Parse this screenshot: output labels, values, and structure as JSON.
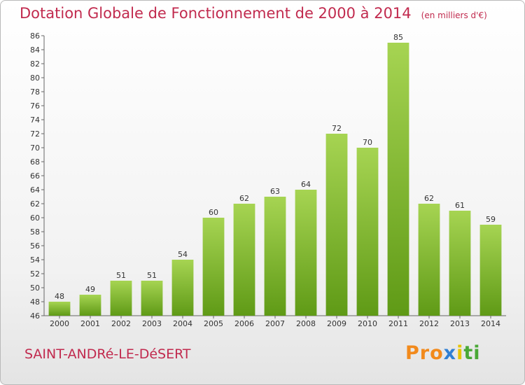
{
  "title": "Dotation Globale de Fonctionnement de 2000 à 2014",
  "unit_note": "(en milliers d'€)",
  "commune": "SAINT-ANDRé-LE-DéSERT",
  "logo_text": "Proxiti",
  "colors": {
    "title": "#c12a4e",
    "bar_top": "#a6d452",
    "bar_bottom": "#5f9a16",
    "axis": "#666666",
    "grid": "#dddddd"
  },
  "chart_data": {
    "type": "bar",
    "title": "Dotation Globale de Fonctionnement de 2000 à 2014",
    "subtitle": "(en milliers d'€)",
    "xlabel": "",
    "ylabel": "",
    "categories": [
      "2000",
      "2001",
      "2002",
      "2003",
      "2004",
      "2005",
      "2006",
      "2007",
      "2008",
      "2009",
      "2010",
      "2011",
      "2012",
      "2013",
      "2014"
    ],
    "values": [
      48,
      49,
      51,
      51,
      54,
      60,
      62,
      63,
      64,
      72,
      70,
      85,
      62,
      61,
      59
    ],
    "ylim": [
      46,
      86
    ],
    "yticks": [
      46,
      48,
      50,
      52,
      54,
      56,
      58,
      60,
      62,
      64,
      66,
      68,
      70,
      72,
      74,
      76,
      78,
      80,
      82,
      84,
      86
    ],
    "data_labels": true,
    "grid": false,
    "legend": "none"
  }
}
